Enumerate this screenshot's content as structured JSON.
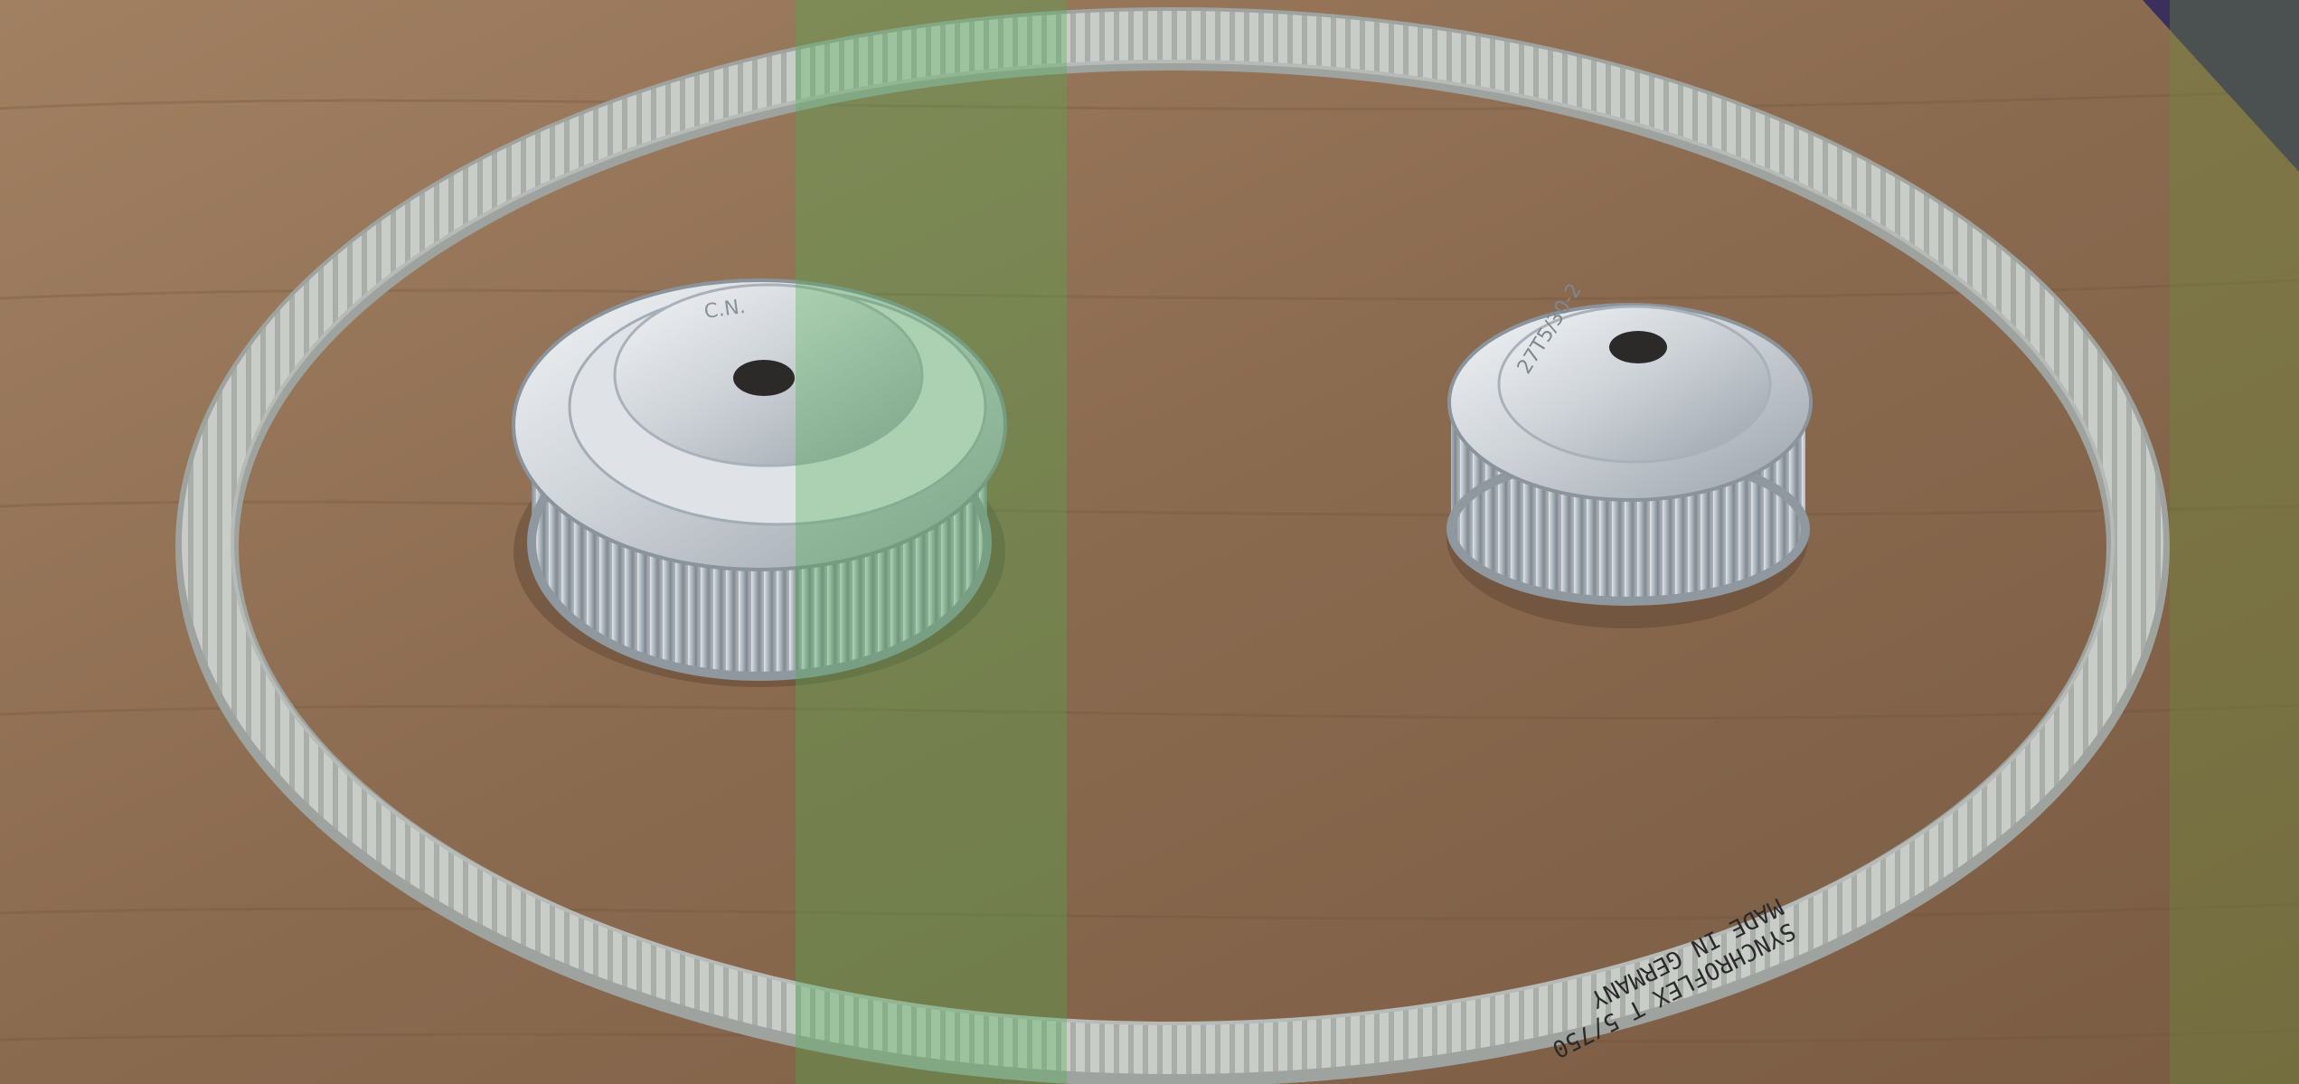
{
  "scene": {
    "belt_print_lines": [
      "SYNCHROFLEX T 5/750",
      "MADE IN GERMANY"
    ],
    "pulley_markings": {
      "large": "C.N.",
      "small": "27T5/30-2"
    }
  },
  "colors": {
    "wood_base": "#8a6a4f",
    "wood_light": "#a9876a",
    "wood_dark": "#6b4f39",
    "belt": "#c9ccc8",
    "belt_shadow": "#9ea39f",
    "aluminium": "#d4d8dc",
    "aluminium_dark": "#9aa2aa",
    "bore": "#2b2a28",
    "edge_purple": "#3b2f5e"
  }
}
